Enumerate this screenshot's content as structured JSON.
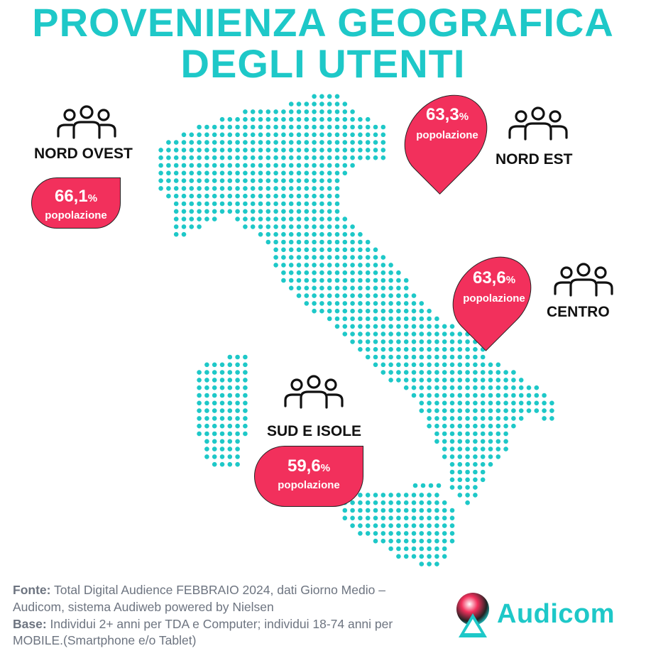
{
  "title": {
    "line1": "PROVENIENZA GEOGRAFICA",
    "line2": "DEGLI UTENTI"
  },
  "colors": {
    "accent": "#1ec8c8",
    "bubble": "#f2305c",
    "text": "#111111",
    "footer": "#6d7480"
  },
  "regions": {
    "nord_ovest": {
      "name": "NORD OVEST",
      "value": "66,1",
      "unit": "%",
      "label": "popolazione"
    },
    "nord_est": {
      "name": "NORD EST",
      "value": "63,3",
      "unit": "%",
      "label": "popolazione"
    },
    "centro": {
      "name": "CENTRO",
      "value": "63,6",
      "unit": "%",
      "label": "popolazione"
    },
    "sud_isole": {
      "name": "SUD E ISOLE",
      "value": "59,6",
      "unit": "%",
      "label": "popolazione"
    }
  },
  "icons": {
    "people": "people-group-icon",
    "logo": "audicom-logo-icon"
  },
  "footer": {
    "fonte_label": "Fonte:",
    "fonte_text": " Total Digital Audience FEBBRAIO 2024, dati Giorno Medio – Audicom, sistema Audiweb powered by Nielsen",
    "base_label": "Base:",
    "base_text": "  Individui 2+ anni per TDA e Computer; individui 18-74 anni per MOBILE.(Smartphone e/o Tablet)"
  },
  "logo": {
    "name": "Audicom"
  }
}
